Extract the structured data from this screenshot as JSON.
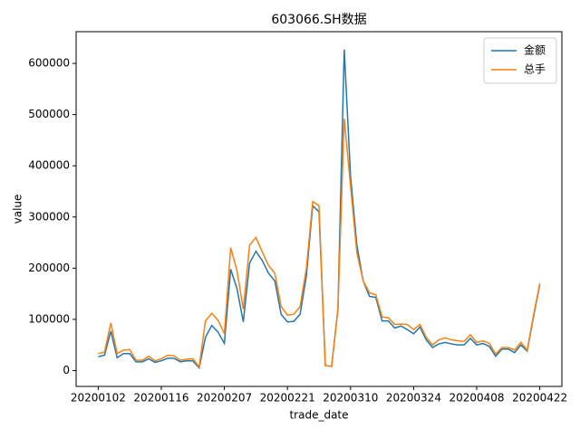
{
  "chart_data": {
    "type": "line",
    "title": "603066.SH数据",
    "xlabel": "trade_date",
    "ylabel": "value",
    "categories": [
      "20200102",
      null,
      null,
      null,
      null,
      null,
      null,
      null,
      null,
      null,
      "20200116",
      null,
      null,
      null,
      null,
      null,
      null,
      null,
      null,
      null,
      "20200207",
      null,
      null,
      null,
      null,
      null,
      null,
      null,
      null,
      null,
      "20200221",
      null,
      null,
      null,
      null,
      null,
      null,
      null,
      null,
      null,
      "20200310",
      null,
      null,
      null,
      null,
      null,
      null,
      null,
      null,
      null,
      "20200324",
      null,
      null,
      null,
      null,
      null,
      null,
      null,
      null,
      null,
      "20200408",
      null,
      null,
      null,
      null,
      null,
      null,
      null,
      null,
      null,
      "20200422"
    ],
    "series": [
      {
        "name": "金额",
        "color": "#1f77b4",
        "values": [
          27000,
          30000,
          77000,
          25000,
          33000,
          33000,
          17000,
          17000,
          23000,
          16000,
          19000,
          24000,
          24000,
          17000,
          19000,
          19000,
          5000,
          65000,
          88000,
          75000,
          53000,
          198000,
          160000,
          95000,
          210000,
          233000,
          215000,
          190000,
          175000,
          110000,
          95000,
          96000,
          110000,
          185000,
          322000,
          310000,
          10000,
          8000,
          120000,
          627000,
          380000,
          245000,
          175000,
          145000,
          143000,
          97000,
          97000,
          83000,
          87000,
          80000,
          72000,
          85000,
          60000,
          45000,
          52000,
          55000,
          52000,
          50000,
          50000,
          63000,
          50000,
          53000,
          47000,
          28000,
          42000,
          42000,
          35000,
          50000,
          38000,
          105000,
          168000
        ]
      },
      {
        "name": "总手",
        "color": "#ff7f0e",
        "values": [
          33000,
          36000,
          93000,
          33000,
          40000,
          41000,
          20000,
          20000,
          28000,
          19000,
          23000,
          30000,
          29000,
          20000,
          22000,
          23000,
          7000,
          97000,
          112000,
          98000,
          72000,
          240000,
          195000,
          120000,
          245000,
          260000,
          232000,
          205000,
          190000,
          125000,
          108000,
          110000,
          125000,
          200000,
          330000,
          322000,
          10000,
          8000,
          120000,
          492000,
          360000,
          230000,
          175000,
          152000,
          148000,
          105000,
          103000,
          90000,
          91000,
          90000,
          80000,
          90000,
          65000,
          50000,
          60000,
          64000,
          60000,
          58000,
          57000,
          70000,
          55000,
          58000,
          53000,
          32000,
          45000,
          45000,
          40000,
          55000,
          40000,
          108000,
          170000
        ]
      }
    ],
    "ylim": [
      -31000,
      662000
    ],
    "yticks": [
      0,
      100000,
      200000,
      300000,
      400000,
      500000,
      600000
    ],
    "legend": "upper right",
    "grid": false
  }
}
